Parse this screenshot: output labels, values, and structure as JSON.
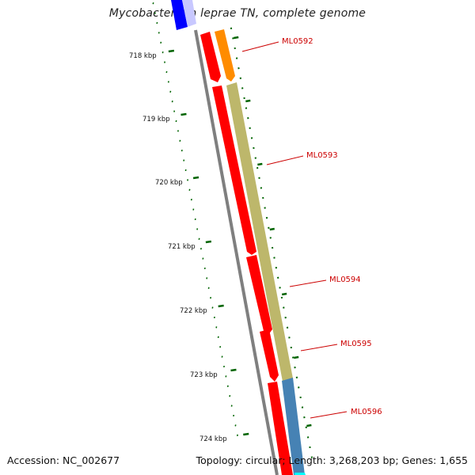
{
  "title": "Mycobacterium leprae TN, complete genome",
  "footer": {
    "accession": "Accession: NC_002677",
    "summary": "Topology: circular; Length: 3,268,203 bp; Genes: 1,655"
  },
  "axis": {
    "ticks": [
      {
        "label": "718 kbp"
      },
      {
        "label": "719 kbp"
      },
      {
        "label": "720 kbp"
      },
      {
        "label": "721 kbp"
      },
      {
        "label": "722 kbp"
      },
      {
        "label": "723 kbp"
      },
      {
        "label": "724 kbp"
      }
    ]
  },
  "genes": [
    {
      "label": "ML0592",
      "color": "#ff8c00"
    },
    {
      "label": "ML0593",
      "color": "#bdb76b"
    },
    {
      "label": "ML0594",
      "color": "#ff0000"
    },
    {
      "label": "ML0595",
      "color": "#ff0000"
    },
    {
      "label": "ML0596",
      "color": "#4682b4"
    }
  ],
  "colors": {
    "backbone": "#808080",
    "cds_reverse": "#ff0000",
    "tick": "#006400",
    "label": "#cc0000",
    "blue_feature": "#0000ff",
    "cyan_feature": "#00ffff"
  }
}
